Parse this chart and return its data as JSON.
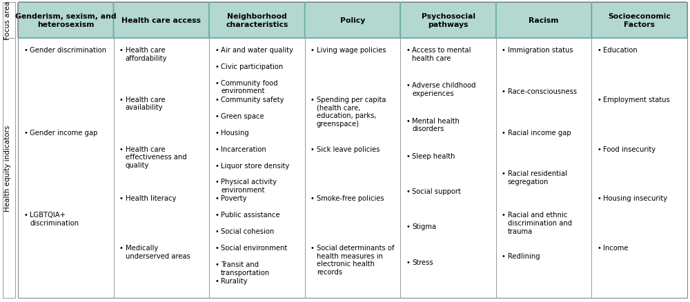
{
  "columns": [
    {
      "header": "Genderism, sexism, and\nheterosexism",
      "items": [
        "Gender discrimination",
        "Gender income gap",
        "LGBTQIA+\ndiscrimination"
      ]
    },
    {
      "header": "Health care access",
      "items": [
        "Health care\naffordability",
        "Health care\navailability",
        "Health care\neffectiveness and\nquality",
        "Health literacy",
        "Medically\nunderserved areas"
      ]
    },
    {
      "header": "Neighborhood\ncharacteristics",
      "items": [
        "Air and water quality",
        "Civic participation",
        "Community food\nenvironment",
        "Community safety",
        "Green space",
        "Housing",
        "Incarceration",
        "Liquor store density",
        "Physical activity\nenvironment",
        "Poverty",
        "Public assistance",
        "Social cohesion",
        "Social environment",
        "Transit and\ntransportation",
        "Rurality"
      ]
    },
    {
      "header": "Policy",
      "items": [
        "Living wage policies",
        "Spending per capita\n(health care,\neducation, parks,\ngreenspace)",
        "Sick leave policies",
        "Smoke-free policies",
        "Social determinants of\nhealth measures in\nelectronic health\nrecords"
      ]
    },
    {
      "header": "Psychosocial\npathways",
      "items": [
        "Access to mental\nhealth care",
        "Adverse childhood\nexperiences",
        "Mental health\ndisorders",
        "Sleep health",
        "Social support",
        "Stigma",
        "Stress"
      ]
    },
    {
      "header": "Racism",
      "items": [
        "Immigration status",
        "Race-consciousness",
        "Racial income gap",
        "Racial residential\nsegregation",
        "Racial and ethnic\ndiscrimination and\ntrauma",
        "Redlining"
      ]
    },
    {
      "header": "Socioeconomic\nFactors",
      "items": [
        "Education",
        "Employment status",
        "Food insecurity",
        "Housing insecurity",
        "Income"
      ]
    }
  ],
  "header_bg_color": "#b2d8d0",
  "header_border_color": "#6aada0",
  "cell_border_color": "#999999",
  "outer_border_color": "#888888",
  "bullet": "•",
  "left_label_top": "Focus area",
  "left_label_bottom": "Health equity indicators",
  "header_fontsize": 7.8,
  "item_fontsize": 7.2,
  "label_fontsize": 7.5,
  "bg_color": "#ffffff",
  "fig_width": 10.0,
  "fig_height": 4.39,
  "dpi": 100
}
